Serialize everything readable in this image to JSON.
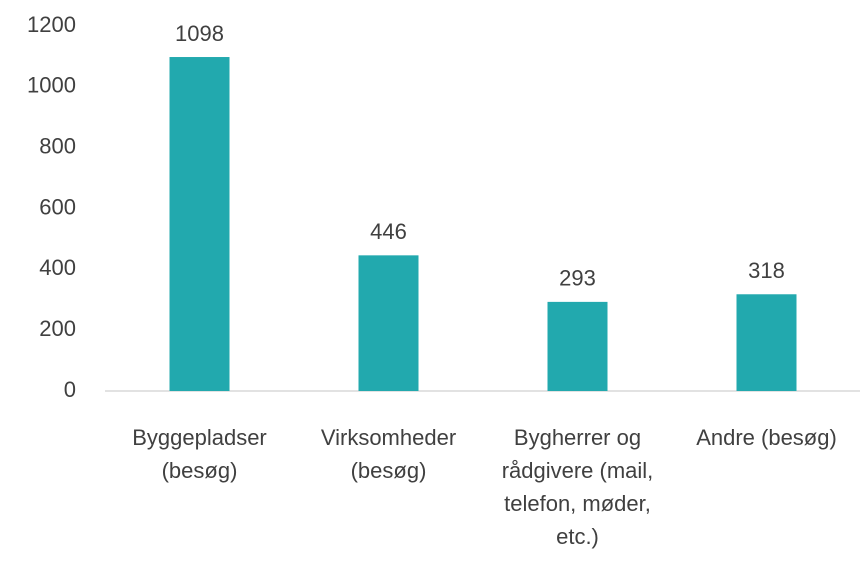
{
  "chart_data": {
    "type": "bar",
    "categories": [
      "Byggepladser (besøg)",
      "Virksomheder (besøg)",
      "Bygherrer og rådgivere (mail, telefon, møder, etc.)",
      "Andre (besøg)"
    ],
    "values": [
      1098,
      446,
      293,
      318
    ],
    "color": "#22a9ae",
    "ylim": [
      0,
      1200
    ],
    "yticks": [
      0,
      200,
      400,
      600,
      800,
      1000,
      1200
    ],
    "grid": false
  }
}
